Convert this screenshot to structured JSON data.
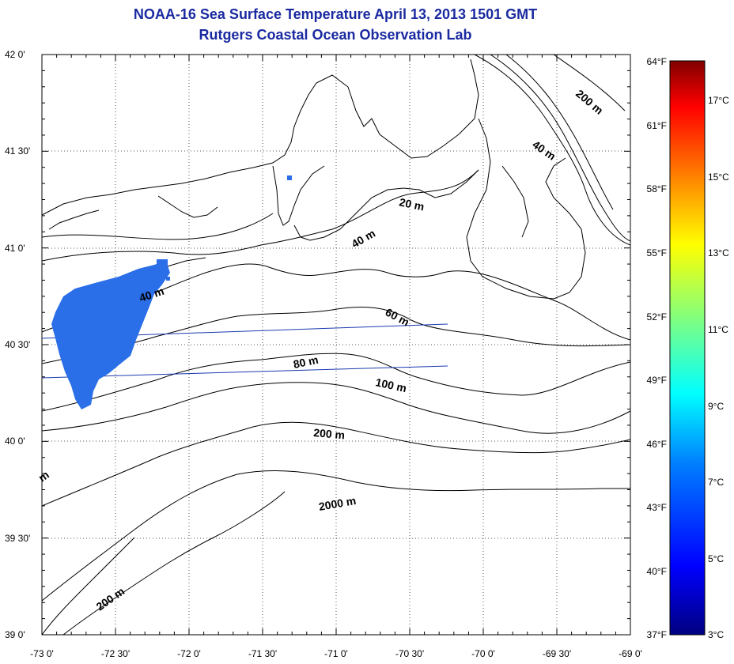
{
  "title": "NOAA-16 Sea Surface Temperature April 13, 2013 1501 GMT",
  "subtitle": "Rutgers Coastal Ocean Observation Lab",
  "map": {
    "lon_labels": [
      "-73 0'",
      "-72 30'",
      "-72 0'",
      "-71 30'",
      "-71 0'",
      "-70 30'",
      "-70 0'",
      "-69 30'",
      "-69 0'"
    ],
    "lat_labels": [
      "42 0'",
      "41 30'",
      "41 0'",
      "40 30'",
      "40 0'",
      "39 30'",
      "39 0'"
    ],
    "contour_labels": [
      "200 m",
      "40 m",
      "20 m",
      "40 m",
      "40 m",
      "60 m",
      "80 m",
      "100 m",
      "200 m",
      "2000 m",
      "200 m",
      "m"
    ]
  },
  "colorbar": {
    "fahrenheit_labels": [
      "64°F",
      "61°F",
      "58°F",
      "55°F",
      "52°F",
      "49°F",
      "46°F",
      "43°F",
      "40°F",
      "37°F"
    ],
    "celsius_labels": [
      "17°C",
      "15°C",
      "13°C",
      "11°C",
      "9°C",
      "7°C",
      "5°C",
      "3°C"
    ]
  },
  "colors": {
    "title": "#1a2aa0",
    "sst_patch": "#2a6ee8",
    "colorbar_stops": [
      "#000080",
      "#0000ff",
      "#0080ff",
      "#00ffff",
      "#80ff80",
      "#ffff00",
      "#ff8000",
      "#ff0000",
      "#800000"
    ]
  }
}
